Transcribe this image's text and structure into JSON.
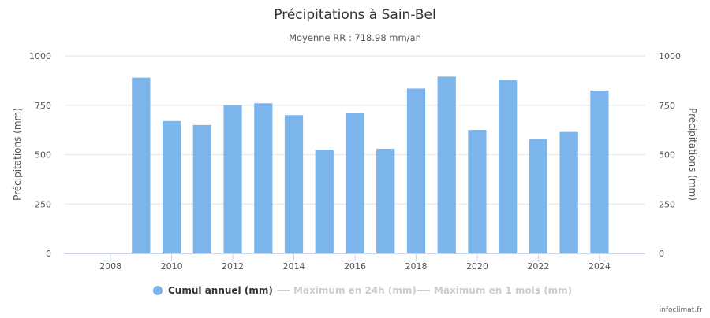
{
  "chart_data": {
    "type": "bar",
    "title": "Précipitations à Sain-Bel",
    "subtitle": "Moyenne RR : 718.98 mm/an",
    "ylabel_left": "Précipitations (mm)",
    "ylabel_right": "Précipitations (mm)",
    "xlabel": "",
    "xlim": [
      2006.5,
      2025.5
    ],
    "ylim": [
      0,
      1000
    ],
    "x_ticks": [
      2008,
      2010,
      2012,
      2014,
      2016,
      2018,
      2020,
      2022,
      2024
    ],
    "y_ticks": [
      0,
      250,
      500,
      750,
      1000
    ],
    "grid": true,
    "legend_position": "bottom-center",
    "series": [
      {
        "name": "Cumul annuel (mm)",
        "color": "#7cb5ec",
        "visible": true,
        "x": [
          2009,
          2010,
          2011,
          2012,
          2013,
          2014,
          2015,
          2016,
          2017,
          2018,
          2019,
          2020,
          2021,
          2022,
          2023,
          2024
        ],
        "values": [
          890,
          670,
          650,
          750,
          760,
          700,
          525,
          710,
          530,
          835,
          895,
          625,
          880,
          580,
          615,
          825
        ]
      },
      {
        "name": "Maximum en 24h (mm)",
        "color": "#cccccc",
        "visible": false,
        "x": [],
        "values": []
      },
      {
        "name": "Maximum en 1 mois (mm)",
        "color": "#cccccc",
        "visible": false,
        "x": [],
        "values": []
      }
    ]
  },
  "credit": "infoclimat.fr"
}
